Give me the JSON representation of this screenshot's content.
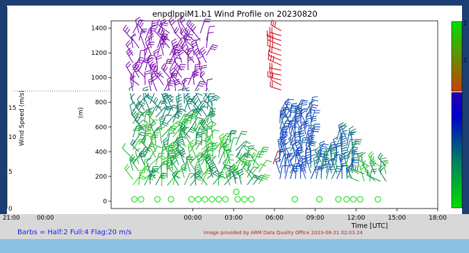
{
  "chart_data": {
    "type": "scatter",
    "title": "enpdlppiM1.b1 Wind Profile on 20230820",
    "xlabel": "Time [UTC]",
    "ylabel": "(m)",
    "xlim": [
      -6,
      18
    ],
    "ylim": [
      -60,
      1460
    ],
    "x_ticks": [
      "00:00",
      "03:00",
      "06:00",
      "09:00",
      "12:00",
      "15:00",
      "18:00"
    ],
    "x_tick_values": [
      0,
      3,
      6,
      9,
      12,
      15,
      18
    ],
    "y_ticks": [
      "0",
      "200",
      "400",
      "600",
      "800",
      "1000",
      "1200",
      "1400"
    ],
    "y_tick_values": [
      0,
      200,
      400,
      600,
      800,
      1000,
      1200,
      1400
    ],
    "colorbar": {
      "label": "Wind Speed (m/s)",
      "colors": [
        "#00e000",
        "#006070",
        "#0000d0",
        "#8a4000",
        "#c84000",
        "#ff1010"
      ],
      "ticks_visible": [
        "2",
        "2"
      ]
    },
    "calm_markers_hours": [
      -4.3,
      -3.8,
      -2.6,
      -1.6,
      -0.1,
      0.4,
      0.9,
      1.4,
      1.9,
      2.4,
      3.3,
      3.8,
      4.3,
      7.5,
      9.3,
      10.7,
      11.3,
      11.8,
      12.3,
      13.6
    ],
    "calm_marker_extra": {
      "x": 3.2,
      "y": 75
    },
    "barb_note": "Barbs = Half:2 Full:4 Flag:20 m/s"
  },
  "left_panel": {
    "y_label": "Wind Speed (m/s)",
    "y_ticks": [
      "15",
      "10",
      "5",
      "0"
    ],
    "x_ticks": [
      "21:00",
      "00:00"
    ]
  },
  "footer": {
    "barbs_text": "Barbs = Half:2 Full:4 Flag:20 m/s",
    "credit": "Image provided by ARM Data Quality Office 2023-08-21 02:03:24"
  },
  "colors": {
    "background": "#1b3f73",
    "footer_band": "#d8d8d8",
    "bottom_band": "#8cc0e0",
    "purple": "#7a10b0",
    "red": "#d01020",
    "blue": "#1040c0",
    "green": "#10b040",
    "teal": "#107080"
  }
}
